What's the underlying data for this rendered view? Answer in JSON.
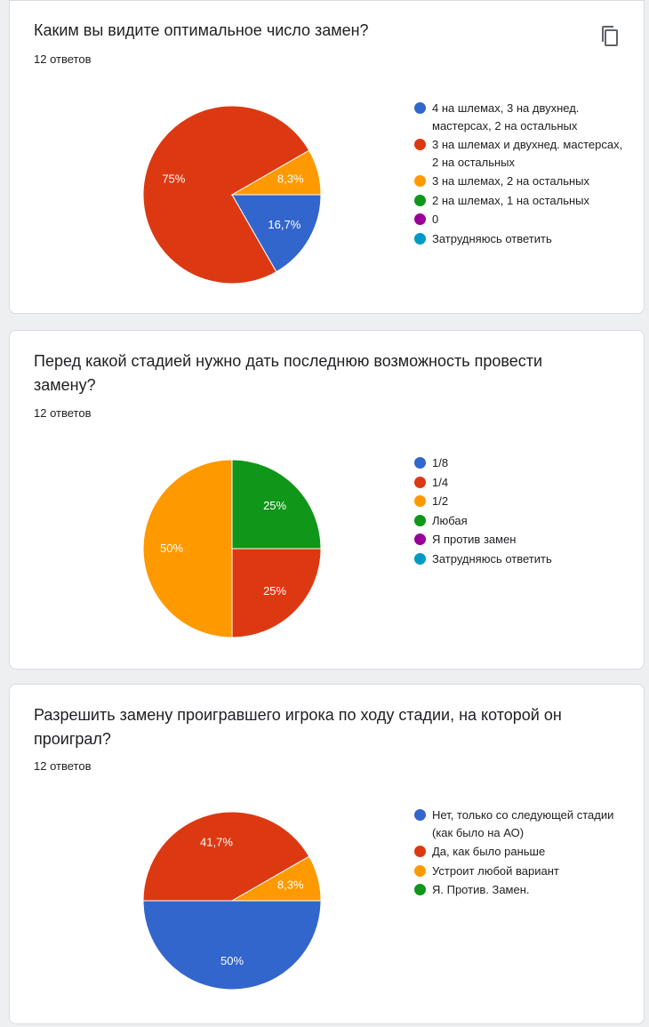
{
  "colors": {
    "blue": "#3366cc",
    "red": "#dc3912",
    "orange": "#ff9900",
    "green": "#109618",
    "purple": "#990099",
    "teal": "#0099c6"
  },
  "icons": {
    "copy": "copy-icon"
  },
  "questions": [
    {
      "title": "Каким вы видите оптимальное число замен?",
      "count": "12 ответов"
    },
    {
      "title": "Перед какой стадией нужно дать последнюю возможность провести замену?",
      "count": "12 ответов"
    },
    {
      "title": "Разрешить замену проигравшего игрока по ходу стадии, на которой он проиграл?",
      "count": "12 ответов"
    }
  ],
  "chart_data": [
    {
      "type": "pie",
      "title": "Каким вы видите оптимальное число замен?",
      "series": [
        {
          "name": "4 на шлемах, 3 на двухнед. мастерсах, 2 на остальных",
          "value": 16.7,
          "label": "16,7%",
          "color": "#3366cc"
        },
        {
          "name": "3 на шлемах и двухнед. мастерсах, 2 на остальных",
          "value": 75,
          "label": "75%",
          "color": "#dc3912"
        },
        {
          "name": "3 на шлемах, 2 на остальных",
          "value": 8.3,
          "label": "8,3%",
          "color": "#ff9900"
        },
        {
          "name": "2 на шлемах, 1 на остальных",
          "value": 0,
          "label": "",
          "color": "#109618"
        },
        {
          "name": "0",
          "value": 0,
          "label": "",
          "color": "#990099"
        },
        {
          "name": "Затрудняюсь ответить",
          "value": 0,
          "label": "",
          "color": "#0099c6"
        }
      ],
      "legend": "right"
    },
    {
      "type": "pie",
      "title": "Перед какой стадией нужно дать последнюю возможность провести замену?",
      "series": [
        {
          "name": "1/8",
          "value": 0,
          "label": "",
          "color": "#3366cc"
        },
        {
          "name": "1/4",
          "value": 25,
          "label": "25%",
          "color": "#dc3912"
        },
        {
          "name": "1/2",
          "value": 50,
          "label": "50%",
          "color": "#ff9900"
        },
        {
          "name": "Любая",
          "value": 25,
          "label": "25%",
          "color": "#109618"
        },
        {
          "name": "Я против замен",
          "value": 0,
          "label": "",
          "color": "#990099"
        },
        {
          "name": "Затрудняюсь ответить",
          "value": 0,
          "label": "",
          "color": "#0099c6"
        }
      ],
      "legend": "right"
    },
    {
      "type": "pie",
      "title": "Разрешить замену проигравшего игрока по ходу стадии, на которой он проиграл?",
      "series": [
        {
          "name": "Нет, только со следующей стадии (как было на АО)",
          "value": 50,
          "label": "50%",
          "color": "#3366cc"
        },
        {
          "name": "Да, как было раньше",
          "value": 41.7,
          "label": "41,7%",
          "color": "#dc3912"
        },
        {
          "name": "Устроит любой вариант",
          "value": 8.3,
          "label": "8,3%",
          "color": "#ff9900"
        },
        {
          "name": "Я. Против. Замен.",
          "value": 0,
          "label": "",
          "color": "#109618"
        }
      ],
      "legend": "right"
    }
  ]
}
